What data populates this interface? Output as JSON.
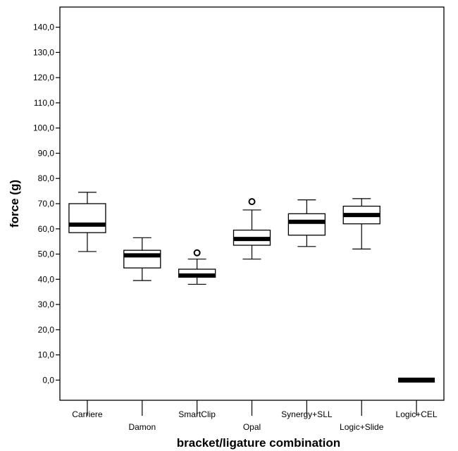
{
  "chart_data": {
    "type": "boxplot",
    "xlabel": "bracket/ligature combination",
    "ylabel": "force (g)",
    "ylim": [
      -8,
      148
    ],
    "yticks": [
      0,
      10,
      20,
      30,
      40,
      50,
      60,
      70,
      80,
      90,
      100,
      110,
      120,
      130,
      140
    ],
    "ytick_labels": [
      "0,0",
      "10,0",
      "20,0",
      "30,0",
      "40,0",
      "50,0",
      "60,0",
      "70,0",
      "80,0",
      "90,0",
      "100,0",
      "110,0",
      "120,0",
      "130,0",
      "140,0"
    ],
    "grid": false,
    "categories": [
      "Carriere",
      "Damon",
      "SmartClip",
      "Opal",
      "Synergy+SLL",
      "Logic+Slide",
      "Logic+CEL"
    ],
    "boxes": [
      {
        "category": "Carriere",
        "min": 51.0,
        "q1": 58.5,
        "median": 61.7,
        "q3": 70.0,
        "max": 74.5,
        "outliers": []
      },
      {
        "category": "Damon",
        "min": 39.5,
        "q1": 44.5,
        "median": 49.5,
        "q3": 51.5,
        "max": 56.5,
        "outliers": []
      },
      {
        "category": "SmartClip",
        "min": 38.0,
        "q1": 40.8,
        "median": 41.5,
        "q3": 44.0,
        "max": 48.0,
        "outliers": [
          50.5
        ]
      },
      {
        "category": "Opal",
        "min": 48.0,
        "q1": 53.5,
        "median": 56.0,
        "q3": 59.5,
        "max": 67.5,
        "outliers": [
          70.8
        ]
      },
      {
        "category": "Synergy+SLL",
        "min": 53.0,
        "q1": 57.5,
        "median": 62.8,
        "q3": 66.0,
        "max": 71.5,
        "outliers": []
      },
      {
        "category": "Logic+Slide",
        "min": 52.0,
        "q1": 62.0,
        "median": 65.5,
        "q3": 69.0,
        "max": 72.0,
        "outliers": []
      },
      {
        "category": "Logic+CEL",
        "min": 0.0,
        "q1": 0.0,
        "median": 0.0,
        "q3": 0.0,
        "max": 0.0,
        "outliers": []
      }
    ]
  }
}
